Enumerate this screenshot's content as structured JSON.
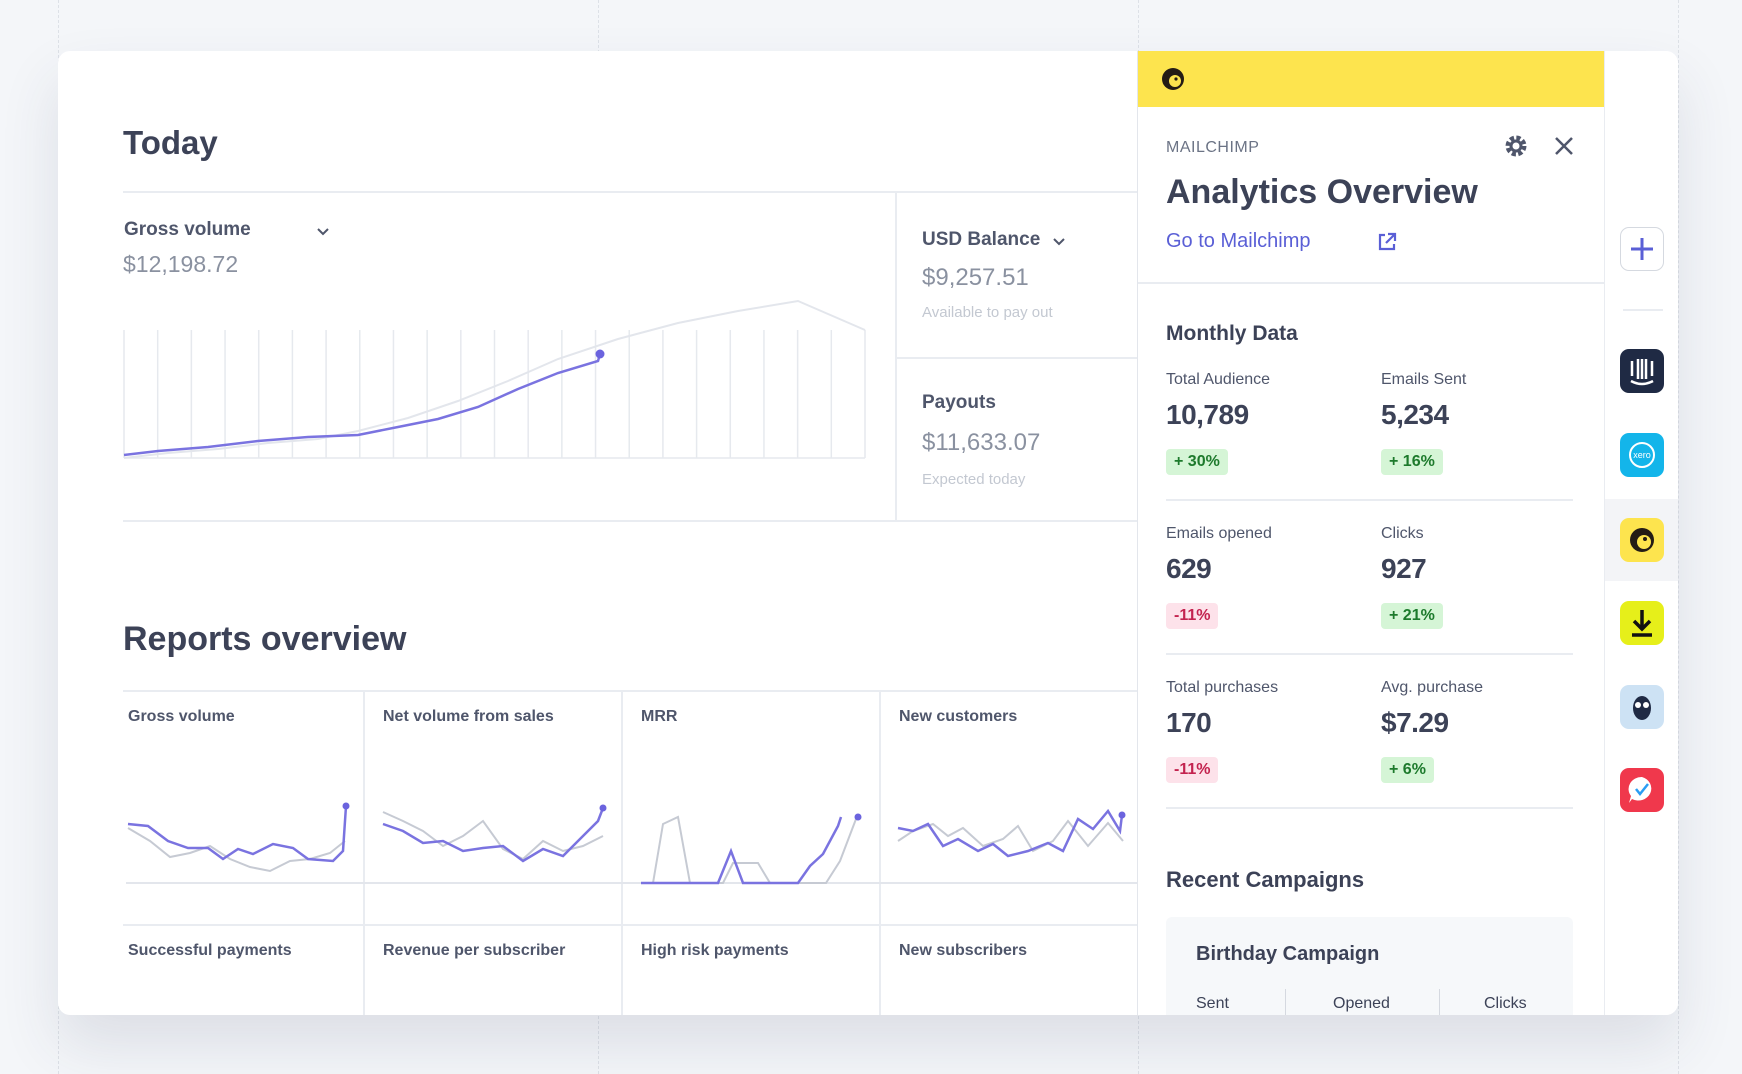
{
  "today": {
    "title": "Today",
    "gross_volume": {
      "label": "Gross volume",
      "amount": "$12,198.72"
    },
    "usd_balance": {
      "label": "USD Balance",
      "amount": "$9,257.51",
      "note": "Available to pay out"
    },
    "payouts": {
      "label": "Payouts",
      "amount": "$11,633.07",
      "note": "Expected today"
    }
  },
  "reports": {
    "title": "Reports overview",
    "cells": [
      "Gross volume",
      "Net volume from sales",
      "MRR",
      "New customers",
      "Successful payments",
      "Revenue per subscriber",
      "High risk payments",
      "New subscribers"
    ]
  },
  "panel": {
    "brand": "MAILCHIMP",
    "title": "Analytics Overview",
    "link": "Go to Mailchimp",
    "monthly": {
      "title": "Monthly Data",
      "metrics": [
        {
          "label": "Total Audience",
          "value": "10,789",
          "change": "+ 30%"
        },
        {
          "label": "Emails Sent",
          "value": "5,234",
          "change": "+ 16%"
        },
        {
          "label": "Emails opened",
          "value": "629",
          "change": "-11%"
        },
        {
          "label": "Clicks",
          "value": "927",
          "change": "+ 21%"
        },
        {
          "label": "Total purchases",
          "value": "170",
          "change": "-11%"
        },
        {
          "label": "Avg. purchase",
          "value": "$7.29",
          "change": "+ 6%"
        }
      ]
    },
    "recent": {
      "title": "Recent Campaigns",
      "campaign": {
        "name": "Birthday Campaign",
        "columns": [
          "Sent",
          "Opened",
          "Clicks"
        ]
      }
    }
  }
}
